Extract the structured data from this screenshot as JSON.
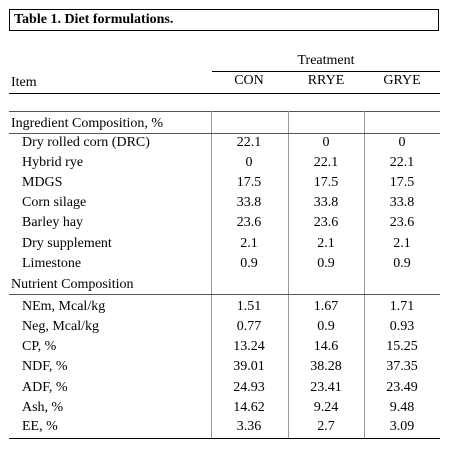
{
  "table_caption": "Table 1. Diet formulations.",
  "header": {
    "treatment_label": "Treatment",
    "item_label": "Item",
    "columns": [
      "CON",
      "RRYE",
      "GRYE"
    ]
  },
  "sections": [
    {
      "title": "Ingredient Composition, %",
      "rows": [
        {
          "label": "Dry rolled corn (DRC)",
          "values": [
            "22.1",
            "0",
            "0"
          ]
        },
        {
          "label": "Hybrid rye",
          "values": [
            "0",
            "22.1",
            "22.1"
          ]
        },
        {
          "label": "MDGS",
          "values": [
            "17.5",
            "17.5",
            "17.5"
          ]
        },
        {
          "label": "Corn silage",
          "values": [
            "33.8",
            "33.8",
            "33.8"
          ]
        },
        {
          "label": "Barley hay",
          "values": [
            "23.6",
            "23.6",
            "23.6"
          ]
        },
        {
          "label": "Dry supplement",
          "values": [
            "2.1",
            "2.1",
            "2.1"
          ]
        },
        {
          "label": "Limestone",
          "values": [
            "0.9",
            "0.9",
            "0.9"
          ]
        }
      ]
    },
    {
      "title": "Nutrient Composition",
      "rows": [
        {
          "label": "NEm, Mcal/kg",
          "values": [
            "1.51",
            "1.67",
            "1.71"
          ]
        },
        {
          "label": "Neg, Mcal/kg",
          "values": [
            "0.77",
            "0.9",
            "0.93"
          ]
        },
        {
          "label": "CP, %",
          "values": [
            "13.24",
            "14.6",
            "15.25"
          ]
        },
        {
          "label": "NDF, %",
          "values": [
            "39.01",
            "38.28",
            "37.35"
          ]
        },
        {
          "label": "ADF, %",
          "values": [
            "24.93",
            "23.41",
            "23.49"
          ]
        },
        {
          "label": "Ash, %",
          "values": [
            "14.62",
            "9.24",
            "9.48"
          ]
        },
        {
          "label": "EE, %",
          "values": [
            "3.36",
            "2.7",
            "3.09"
          ]
        }
      ]
    }
  ]
}
